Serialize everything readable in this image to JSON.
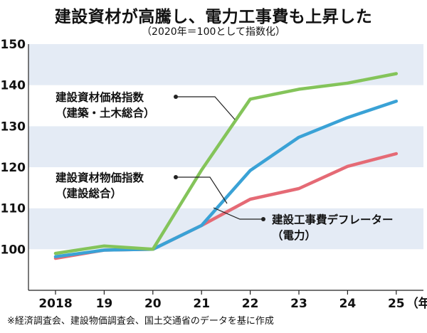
{
  "title": "建設資材が高騰し、電力工事費も上昇した",
  "subtitle": "（2020年＝100として指数化）",
  "note": "※経済調査会、建設物価調査会、国土交通省のデータを基に作成",
  "chart_data": {
    "type": "line",
    "categories": [
      "2018",
      "19",
      "20",
      "21",
      "22",
      "23",
      "24",
      "25"
    ],
    "x_unit": "（年）",
    "ylim": [
      90,
      150
    ],
    "yticks": [
      100,
      110,
      120,
      130,
      140,
      150
    ],
    "grid": "alternating horizontal bands",
    "legend": "inline annotations",
    "series": [
      {
        "label_lines": [
          "建設資材価格指数",
          "（建築・土木総合）"
        ],
        "color": "#84c45a",
        "values": [
          99.0,
          100.8,
          100.0,
          119.3,
          136.6,
          139.0,
          140.5,
          142.8
        ]
      },
      {
        "label_lines": [
          "建設資材物価指数",
          "（建設総合）"
        ],
        "color": "#3aa2d6",
        "values": [
          98.2,
          99.8,
          100.0,
          105.8,
          119.2,
          127.3,
          132.1,
          136.1
        ]
      },
      {
        "label_lines": [
          "建設工事費デフレーター",
          "（電力）"
        ],
        "color": "#e56a75",
        "values": [
          97.8,
          99.8,
          100.0,
          105.8,
          112.2,
          114.8,
          120.2,
          123.3
        ]
      }
    ]
  }
}
